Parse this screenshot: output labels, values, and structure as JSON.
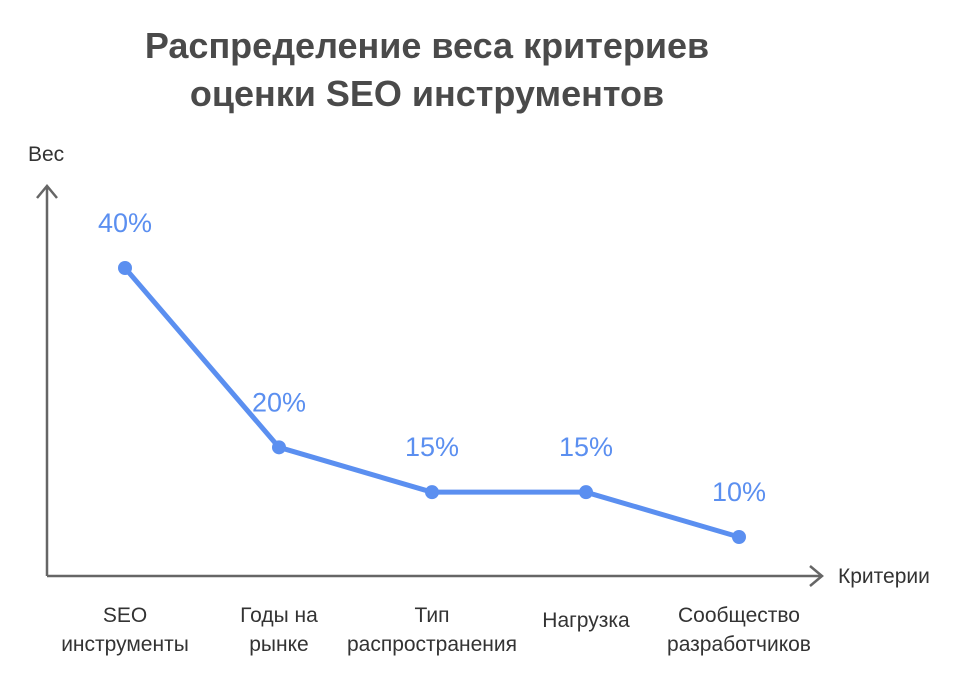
{
  "chart_data": {
    "type": "line",
    "title": [
      "Распределение веса критериев",
      "оценки SEO инструментов"
    ],
    "xlabel": "Критерии",
    "ylabel": "Вес",
    "categories": [
      [
        "SEO",
        "инструменты"
      ],
      [
        "Годы на",
        "рынке"
      ],
      [
        "Тип",
        "распространения"
      ],
      [
        "Нагрузка"
      ],
      [
        "Сообщество",
        "разработчиков"
      ]
    ],
    "values": [
      40,
      20,
      15,
      15,
      10
    ],
    "value_labels": [
      "40%",
      "20%",
      "15%",
      "15%",
      "10%"
    ],
    "unit": "%",
    "grid": false,
    "legend": "none"
  },
  "colors": {
    "series": "#5b8ff0",
    "axis": "#666666",
    "title": "#4a4a4a",
    "text": "#333333"
  }
}
